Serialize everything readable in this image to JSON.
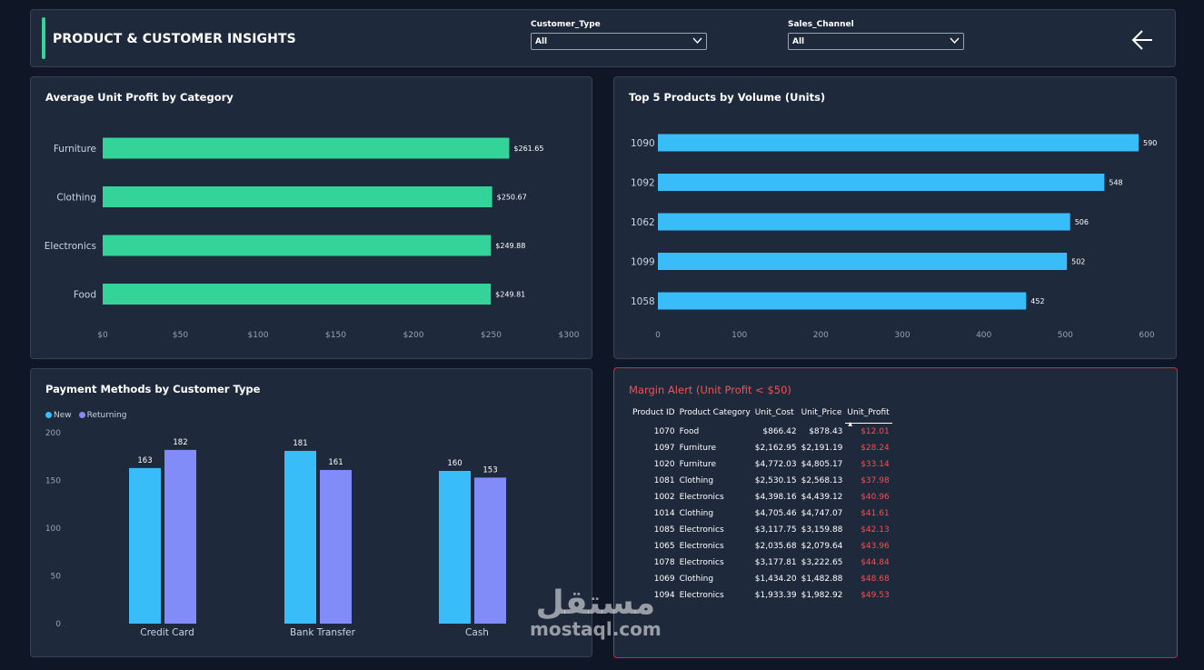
{
  "header": {
    "title": "PRODUCT & CUSTOMER INSIGHTS",
    "filters": [
      {
        "label": "Customer_Type",
        "value": "All"
      },
      {
        "label": "Sales_Channel",
        "value": "All"
      }
    ],
    "back_icon": "arrow-left-icon"
  },
  "colors": {
    "green": "#34d399",
    "blue": "#38bdf8",
    "purple": "#818cf8",
    "alert": "#f05252"
  },
  "chart_data": [
    {
      "type": "bar",
      "orientation": "horizontal",
      "title": "Average Unit Profit by Category",
      "categories": [
        "Furniture",
        "Clothing",
        "Electronics",
        "Food"
      ],
      "values": [
        261.65,
        250.67,
        249.88,
        249.81
      ],
      "data_labels": [
        "$261.65",
        "$250.67",
        "$249.88",
        "$249.81"
      ],
      "xlim": [
        0,
        300
      ],
      "ticks": [
        "$0",
        "$50",
        "$100",
        "$150",
        "$200",
        "$250",
        "$300"
      ]
    },
    {
      "type": "bar",
      "orientation": "horizontal",
      "title": "Top 5 Products by Volume (Units)",
      "categories": [
        "1090",
        "1092",
        "1062",
        "1099",
        "1058"
      ],
      "values": [
        590,
        548,
        506,
        502,
        452
      ],
      "data_labels": [
        "590",
        "548",
        "506",
        "502",
        "452"
      ],
      "xlim": [
        0,
        600
      ],
      "ticks": [
        "0",
        "100",
        "200",
        "300",
        "400",
        "500",
        "600"
      ]
    },
    {
      "type": "bar",
      "orientation": "vertical",
      "title": "Payment Methods by Customer Type",
      "categories": [
        "Credit Card",
        "Bank Transfer",
        "Cash"
      ],
      "series": [
        {
          "name": "New",
          "values": [
            163,
            181,
            160
          ]
        },
        {
          "name": "Returning",
          "values": [
            182,
            161,
            153
          ]
        }
      ],
      "ylim": [
        0,
        200
      ],
      "ticks": [
        "0",
        "50",
        "100",
        "150",
        "200"
      ],
      "legend": "top-left"
    }
  ],
  "table": {
    "title": "Margin Alert (Unit Profit < $50)",
    "columns": [
      "Product ID",
      "Product Category",
      "Unit_Cost",
      "Unit_Price",
      "Unit_Profit"
    ],
    "rows": [
      [
        "1070",
        "Food",
        "$866.42",
        "$878.43",
        "$12.01"
      ],
      [
        "1097",
        "Furniture",
        "$2,162.95",
        "$2,191.19",
        "$28.24"
      ],
      [
        "1020",
        "Furniture",
        "$4,772.03",
        "$4,805.17",
        "$33.14"
      ],
      [
        "1081",
        "Clothing",
        "$2,530.15",
        "$2,568.13",
        "$37.98"
      ],
      [
        "1002",
        "Electronics",
        "$4,398.16",
        "$4,439.12",
        "$40.96"
      ],
      [
        "1014",
        "Clothing",
        "$4,705.46",
        "$4,747.07",
        "$41.61"
      ],
      [
        "1085",
        "Electronics",
        "$3,117.75",
        "$3,159.88",
        "$42.13"
      ],
      [
        "1065",
        "Electronics",
        "$2,035.68",
        "$2,079.64",
        "$43.96"
      ],
      [
        "1078",
        "Electronics",
        "$3,177.81",
        "$3,222.65",
        "$44.84"
      ],
      [
        "1069",
        "Clothing",
        "$1,434.20",
        "$1,482.88",
        "$48.68"
      ],
      [
        "1094",
        "Electronics",
        "$1,933.39",
        "$1,982.92",
        "$49.53"
      ]
    ]
  },
  "watermark": {
    "arabic": "مستقل",
    "latin": "mostaql.com"
  }
}
